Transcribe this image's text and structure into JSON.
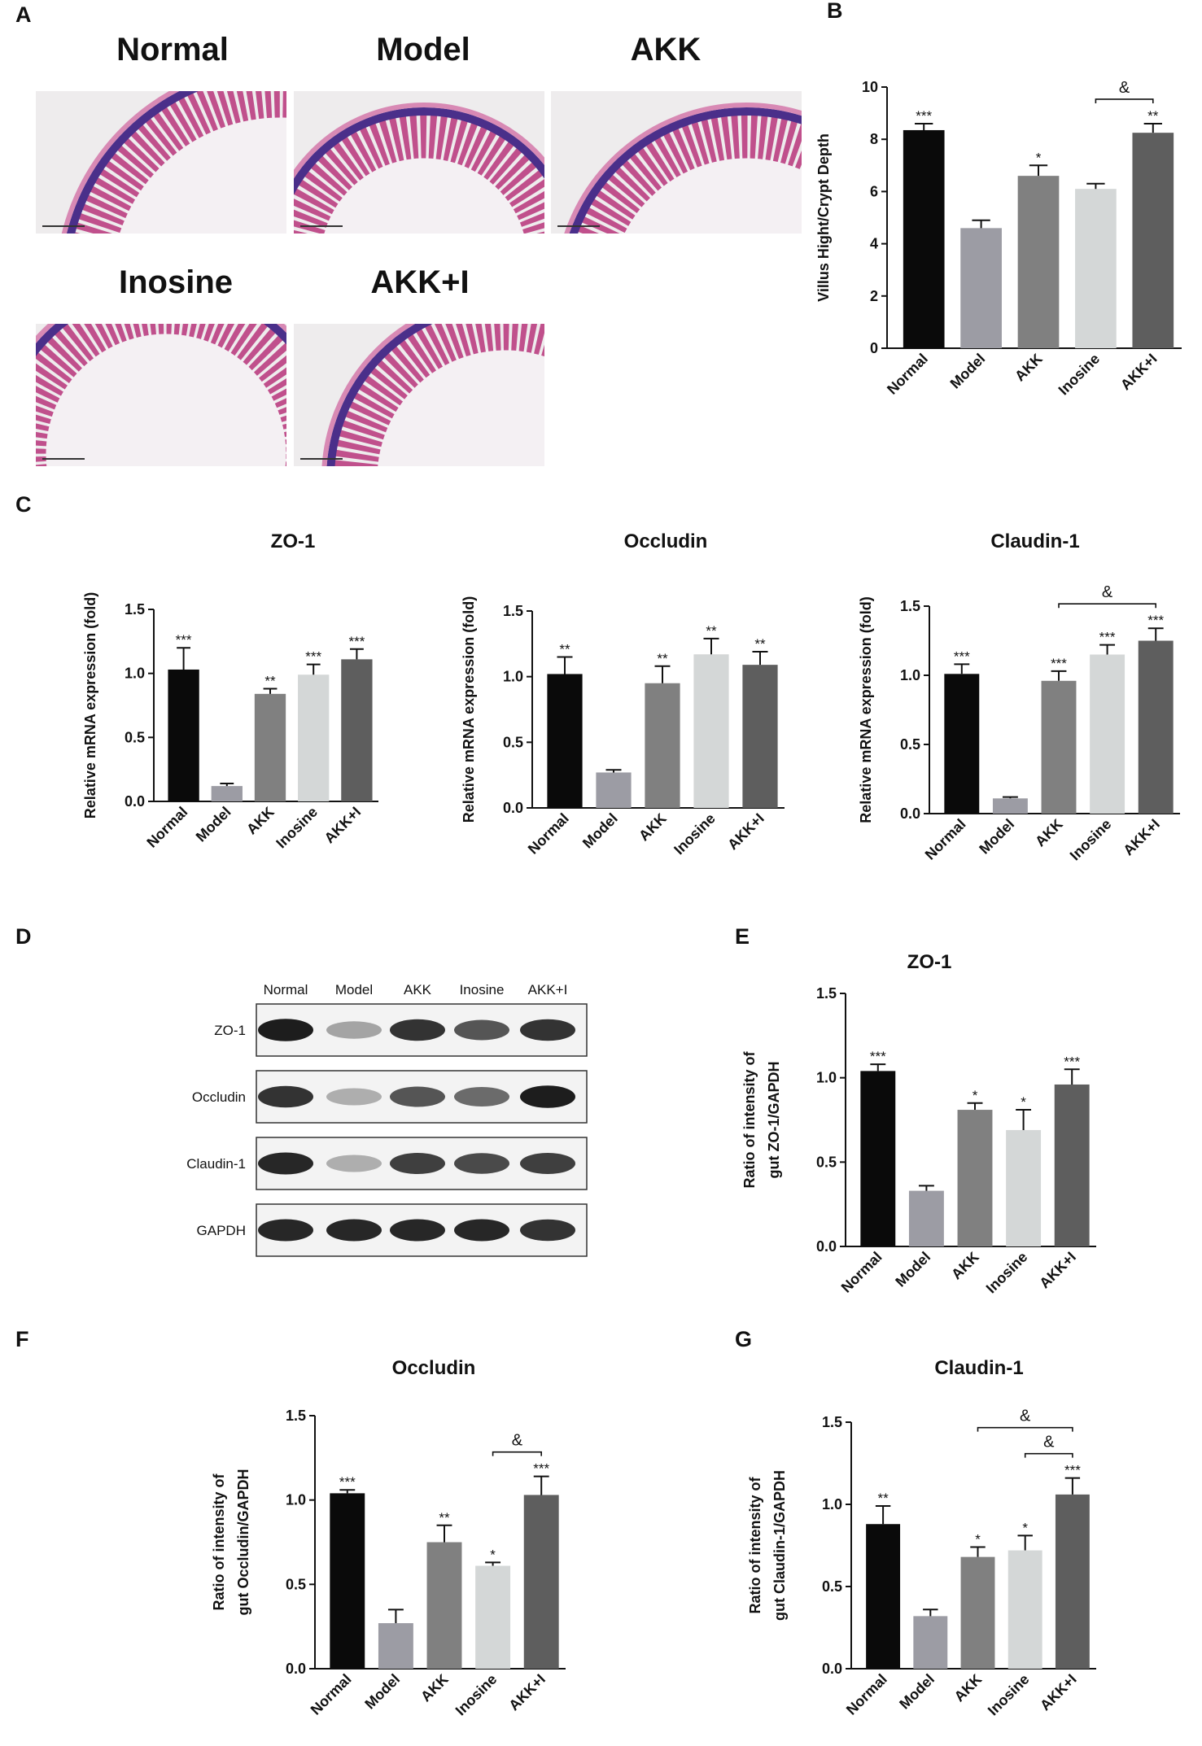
{
  "panel_labels": [
    "A",
    "B",
    "C",
    "D",
    "E",
    "F",
    "G"
  ],
  "histology": {
    "labels": [
      "Normal",
      "Model",
      "AKK",
      "Inosine",
      "AKK+I"
    ]
  },
  "blot": {
    "columns": [
      "Normal",
      "Model",
      "AKK",
      "Inosine",
      "AKK+I"
    ],
    "rows": [
      "ZO-1",
      "Occludin",
      "Claudin-1",
      "GAPDH"
    ]
  },
  "chart_data": [
    {
      "type": "bar",
      "ylabel": [
        "Villus Hight/Crypt Depth"
      ],
      "categories": [
        "Normal",
        "Model",
        "AKK",
        "Inosine",
        "AKK+I"
      ],
      "values": [
        8.35,
        4.6,
        6.6,
        6.1,
        8.25
      ],
      "errors": [
        0.25,
        0.3,
        0.4,
        0.2,
        0.35
      ],
      "annotations": [
        "***",
        null,
        "*",
        null,
        "**"
      ],
      "brackets": [
        {
          "span": [
            "Inosine",
            "AKK+I"
          ],
          "label": "&"
        }
      ],
      "colors": [
        "#0a0a0a",
        "#9c9ca4",
        "#808080",
        "#d4d7d7",
        "#5e5e5e"
      ],
      "ylim": [
        0,
        10
      ],
      "yticks": [
        0,
        2,
        4,
        6,
        8,
        10
      ]
    },
    {
      "type": "bar",
      "title": "ZO-1",
      "ylabel": [
        "Relative mRNA expression (fold)"
      ],
      "categories": [
        "Normal",
        "Model",
        "AKK",
        "Inosine",
        "AKK+I"
      ],
      "values": [
        1.03,
        0.12,
        0.84,
        0.99,
        1.11
      ],
      "errors": [
        0.17,
        0.02,
        0.04,
        0.08,
        0.08
      ],
      "annotations": [
        "***",
        null,
        "**",
        "***",
        "***"
      ],
      "colors": [
        "#0a0a0a",
        "#9c9ca4",
        "#808080",
        "#d4d7d7",
        "#5e5e5e"
      ],
      "ylim": [
        0,
        1.5
      ],
      "yticks": [
        {
          "value": 0,
          "label": "0.0"
        },
        0.5,
        {
          "value": 1,
          "label": "1.0"
        },
        1.5
      ]
    },
    {
      "type": "bar",
      "title": "Occludin",
      "ylabel": [
        "Relative mRNA expression (fold)"
      ],
      "categories": [
        "Normal",
        "Model",
        "AKK",
        "Inosine",
        "AKK+I"
      ],
      "values": [
        1.02,
        0.27,
        0.95,
        1.17,
        1.09
      ],
      "errors": [
        0.13,
        0.02,
        0.13,
        0.12,
        0.1
      ],
      "annotations": [
        "**",
        null,
        "**",
        "**",
        "**"
      ],
      "colors": [
        "#0a0a0a",
        "#9c9ca4",
        "#808080",
        "#d4d7d7",
        "#5e5e5e"
      ],
      "ylim": [
        0,
        1.5
      ],
      "yticks": [
        {
          "value": 0,
          "label": "0.0"
        },
        0.5,
        {
          "value": 1,
          "label": "1.0"
        },
        1.5
      ]
    },
    {
      "type": "bar",
      "title": "Claudin-1",
      "ylabel": [
        "Relative mRNA expression (fold)"
      ],
      "categories": [
        "Normal",
        "Model",
        "AKK",
        "Inosine",
        "AKK+I"
      ],
      "values": [
        1.01,
        0.11,
        0.96,
        1.15,
        1.25
      ],
      "errors": [
        0.07,
        0.01,
        0.07,
        0.07,
        0.09
      ],
      "annotations": [
        "***",
        null,
        "***",
        "***",
        "***"
      ],
      "brackets": [
        {
          "span": [
            "AKK",
            "AKK+I"
          ],
          "label": "&"
        }
      ],
      "colors": [
        "#0a0a0a",
        "#9c9ca4",
        "#808080",
        "#d4d7d7",
        "#5e5e5e"
      ],
      "ylim": [
        0,
        1.5
      ],
      "yticks": [
        {
          "value": 0,
          "label": "0.0"
        },
        0.5,
        {
          "value": 1,
          "label": "1.0"
        },
        1.5
      ]
    },
    {
      "type": "bar",
      "title": "ZO-1",
      "ylabel": [
        "Ratio of intensity of",
        "gut ZO-1/GAPDH"
      ],
      "categories": [
        "Normal",
        "Model",
        "AKK",
        "Inosine",
        "AKK+I"
      ],
      "values": [
        1.04,
        0.33,
        0.81,
        0.69,
        0.96
      ],
      "errors": [
        0.04,
        0.03,
        0.04,
        0.12,
        0.09
      ],
      "annotations": [
        "***",
        null,
        "*",
        "*",
        "***"
      ],
      "colors": [
        "#0a0a0a",
        "#9c9ca4",
        "#808080",
        "#d4d7d7",
        "#5e5e5e"
      ],
      "ylim": [
        0,
        1.5
      ],
      "yticks": [
        {
          "value": 0,
          "label": "0.0"
        },
        0.5,
        {
          "value": 1,
          "label": "1.0"
        },
        1.5
      ]
    },
    {
      "type": "bar",
      "title": "Occludin",
      "ylabel": [
        "Ratio of intensity of",
        "gut Occludin/GAPDH"
      ],
      "categories": [
        "Normal",
        "Model",
        "AKK",
        "Inosine",
        "AKK+I"
      ],
      "values": [
        1.04,
        0.27,
        0.75,
        0.61,
        1.03
      ],
      "errors": [
        0.02,
        0.08,
        0.1,
        0.02,
        0.11
      ],
      "annotations": [
        "***",
        null,
        "**",
        "*",
        "***"
      ],
      "brackets": [
        {
          "span": [
            "Inosine",
            "AKK+I"
          ],
          "label": "&"
        }
      ],
      "colors": [
        "#0a0a0a",
        "#9c9ca4",
        "#808080",
        "#d4d7d7",
        "#5e5e5e"
      ],
      "ylim": [
        0,
        1.5
      ],
      "yticks": [
        {
          "value": 0,
          "label": "0.0"
        },
        0.5,
        {
          "value": 1,
          "label": "1.0"
        },
        1.5
      ]
    },
    {
      "type": "bar",
      "title": "Claudin-1",
      "ylabel": [
        "Ratio of intensity of",
        "gut Claudin-1/GAPDH"
      ],
      "categories": [
        "Normal",
        "Model",
        "AKK",
        "Inosine",
        "AKK+I"
      ],
      "values": [
        0.88,
        0.32,
        0.68,
        0.72,
        1.06
      ],
      "errors": [
        0.11,
        0.04,
        0.06,
        0.09,
        0.1
      ],
      "annotations": [
        "**",
        null,
        "*",
        "*",
        "***"
      ],
      "brackets": [
        {
          "span": [
            "AKK",
            "AKK+I"
          ],
          "label": "&"
        },
        {
          "span": [
            "Inosine",
            "AKK+I"
          ],
          "label": "&"
        }
      ],
      "colors": [
        "#0a0a0a",
        "#9c9ca4",
        "#808080",
        "#d4d7d7",
        "#5e5e5e"
      ],
      "ylim": [
        0,
        1.5
      ],
      "yticks": [
        {
          "value": 0,
          "label": "0.0"
        },
        0.5,
        {
          "value": 1,
          "label": "1.0"
        },
        1.5
      ]
    }
  ]
}
